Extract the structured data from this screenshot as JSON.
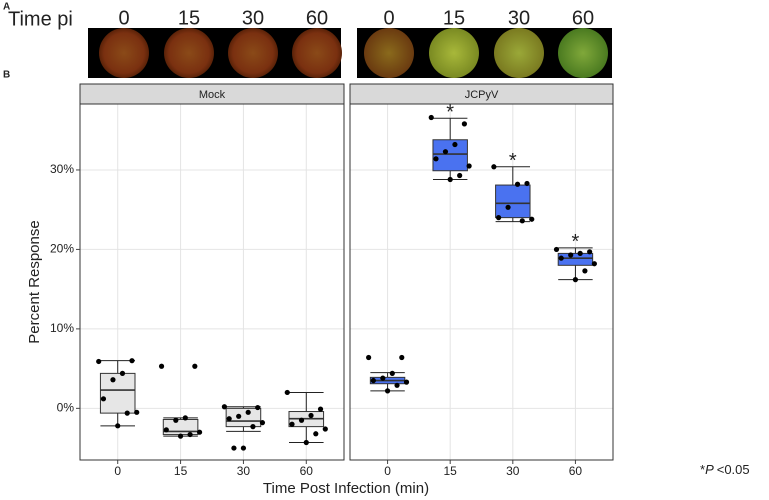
{
  "panel_a": {
    "label": "A",
    "row_label": "Time pi",
    "groups": [
      {
        "times": [
          "0",
          "15",
          "30",
          "60"
        ]
      },
      {
        "times": [
          "0",
          "15",
          "30",
          "60"
        ]
      }
    ]
  },
  "chart_data": {
    "type": "box",
    "panel_label": "B",
    "x_label": "Time Post Infection (min)",
    "y_label": "Percent Response",
    "categories": [
      "0",
      "15",
      "30",
      "60"
    ],
    "ylim": [
      -6.5,
      38.3
    ],
    "yticks": [
      {
        "value": 0,
        "label": "0%"
      },
      {
        "value": 10,
        "label": "10%"
      },
      {
        "value": 20,
        "label": "20%"
      },
      {
        "value": 30,
        "label": "30%"
      }
    ],
    "grid": true,
    "facets": [
      {
        "name": "Mock",
        "color": "#e6e6e6",
        "boxes": [
          {
            "low": -2.2,
            "q1": -0.6,
            "median": 2.3,
            "q3": 4.4,
            "high": 6.0,
            "points": [
              5.9,
              6.0,
              4.4,
              3.6,
              1.2,
              -0.5,
              -0.6,
              -2.2
            ]
          },
          {
            "low": -3.5,
            "q1": -3.3,
            "median": -2.9,
            "q3": -1.4,
            "high": -1.2,
            "points": [
              5.3,
              5.3,
              -1.2,
              -1.5,
              -2.7,
              -3.0,
              -3.3,
              -3.5
            ]
          },
          {
            "low": -2.9,
            "q1": -2.3,
            "median": -1.6,
            "q3": 0.0,
            "high": 0.2,
            "points": [
              0.2,
              0.1,
              -0.5,
              -1.0,
              -1.3,
              -1.8,
              -2.3,
              -5.0,
              -5.0
            ]
          },
          {
            "low": -4.3,
            "q1": -2.3,
            "median": -1.3,
            "q3": -0.4,
            "high": 2.0,
            "points": [
              2.0,
              -0.1,
              -0.9,
              -1.5,
              -2.0,
              -2.6,
              -3.2,
              -4.3
            ]
          }
        ],
        "significance": [
          null,
          null,
          null,
          null
        ]
      },
      {
        "name": "JCPyV",
        "color": "#4a72f0",
        "boxes": [
          {
            "low": 2.2,
            "q1": 3.1,
            "median": 3.5,
            "q3": 3.9,
            "high": 4.5,
            "points": [
              6.4,
              6.4,
              4.4,
              3.8,
              3.5,
              3.3,
              2.9,
              2.2
            ]
          },
          {
            "low": 28.8,
            "q1": 29.9,
            "median": 32.0,
            "q3": 33.8,
            "high": 36.5,
            "points": [
              36.6,
              35.8,
              33.2,
              32.3,
              31.4,
              30.5,
              29.3,
              28.8
            ]
          },
          {
            "low": 23.5,
            "q1": 24.0,
            "median": 25.8,
            "q3": 28.1,
            "high": 30.4,
            "points": [
              30.4,
              28.3,
              28.2,
              25.3,
              24.0,
              23.8,
              23.6
            ]
          },
          {
            "low": 16.2,
            "q1": 18.0,
            "median": 18.9,
            "q3": 19.5,
            "high": 20.2,
            "points": [
              20.0,
              19.7,
              19.5,
              19.3,
              18.9,
              18.2,
              17.3,
              16.2
            ]
          }
        ],
        "significance": [
          null,
          "*",
          "*",
          "*"
        ]
      }
    ],
    "footnote": {
      "symbol": "*",
      "italic": "P",
      "text": "<0.05"
    }
  }
}
